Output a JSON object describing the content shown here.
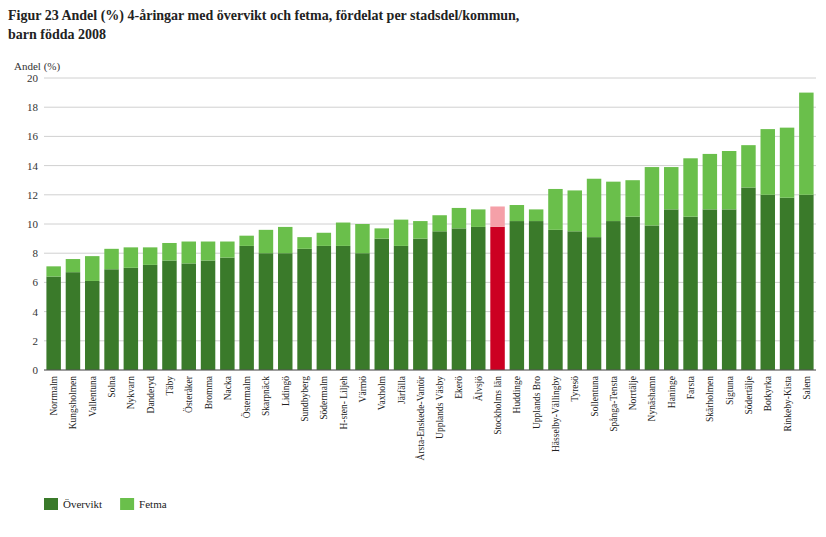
{
  "chart_data": {
    "type": "bar",
    "stacked": true,
    "title": "Figur 23 Andel (%) 4-åringar med övervikt och fetma, fördelat per stadsdel/kommun,\nbarn födda 2008",
    "y_label": "Andel (%)",
    "categories": [
      "Norrmalm",
      "Kungsholmen",
      "Vallentuna",
      "Solna",
      "Nykvarn",
      "Danderyd",
      "Täby",
      "Österåker",
      "Bromma",
      "Nacka",
      "Östermalm",
      "Skarpnäck",
      "Lidingö",
      "Sundbyberg",
      "Södermalm",
      "H-sten- Liljeh",
      "Värmö",
      "Vaxholm",
      "Järfälla",
      "Årsta-Enskede-Vantör",
      "Upplands Väsby",
      "Ekerö",
      "Älvsjö",
      "Stockholms län",
      "Huddinge",
      "Upplands Bro",
      "Hässelby-Vällingby",
      "Tyresö",
      "Sollentuna",
      "Spånga-Tensta",
      "Norrtälje",
      "Nynäshamn",
      "Haninge",
      "Farsta",
      "Skärholmen",
      "Sigtuna",
      "Södertälje",
      "Botkyrka",
      "Rinkeby-Kista",
      "Salem"
    ],
    "series": [
      {
        "name": "Övervikt",
        "color": "#3a7a2a",
        "colors": [
          "#3a7a2a",
          "#3a7a2a",
          "#3a7a2a",
          "#3a7a2a",
          "#3a7a2a",
          "#3a7a2a",
          "#3a7a2a",
          "#3a7a2a",
          "#3a7a2a",
          "#3a7a2a",
          "#3a7a2a",
          "#3a7a2a",
          "#3a7a2a",
          "#3a7a2a",
          "#3a7a2a",
          "#3a7a2a",
          "#3a7a2a",
          "#3a7a2a",
          "#3a7a2a",
          "#3a7a2a",
          "#3a7a2a",
          "#3a7a2a",
          "#3a7a2a",
          "#cc0022",
          "#3a7a2a",
          "#3a7a2a",
          "#3a7a2a",
          "#3a7a2a",
          "#3a7a2a",
          "#3a7a2a",
          "#3a7a2a",
          "#3a7a2a",
          "#3a7a2a",
          "#3a7a2a",
          "#3a7a2a",
          "#3a7a2a",
          "#3a7a2a",
          "#3a7a2a",
          "#3a7a2a",
          "#3a7a2a"
        ],
        "values": [
          6.4,
          6.7,
          6.1,
          6.9,
          7.0,
          7.2,
          7.5,
          7.3,
          7.5,
          7.7,
          8.5,
          8.0,
          8.0,
          8.3,
          8.5,
          8.5,
          8.0,
          9.0,
          8.5,
          9.0,
          9.5,
          9.7,
          9.8,
          9.8,
          10.2,
          10.2,
          9.6,
          9.5,
          9.1,
          10.2,
          10.5,
          9.9,
          11.0,
          10.5,
          11.0,
          11.0,
          12.5,
          12.0,
          11.8,
          12.0
        ]
      },
      {
        "name": "Fetma",
        "color": "#6abf4b",
        "colors": [
          "#6abf4b",
          "#6abf4b",
          "#6abf4b",
          "#6abf4b",
          "#6abf4b",
          "#6abf4b",
          "#6abf4b",
          "#6abf4b",
          "#6abf4b",
          "#6abf4b",
          "#6abf4b",
          "#6abf4b",
          "#6abf4b",
          "#6abf4b",
          "#6abf4b",
          "#6abf4b",
          "#6abf4b",
          "#6abf4b",
          "#6abf4b",
          "#6abf4b",
          "#6abf4b",
          "#6abf4b",
          "#6abf4b",
          "#f5a0a8",
          "#6abf4b",
          "#6abf4b",
          "#6abf4b",
          "#6abf4b",
          "#6abf4b",
          "#6abf4b",
          "#6abf4b",
          "#6abf4b",
          "#6abf4b",
          "#6abf4b",
          "#6abf4b",
          "#6abf4b",
          "#6abf4b",
          "#6abf4b",
          "#6abf4b",
          "#6abf4b"
        ],
        "values": [
          0.7,
          0.9,
          1.7,
          1.4,
          1.4,
          1.2,
          1.2,
          1.5,
          1.3,
          1.1,
          0.7,
          1.6,
          1.8,
          0.8,
          0.9,
          1.6,
          2.0,
          0.7,
          1.8,
          1.2,
          1.1,
          1.4,
          1.2,
          1.4,
          1.1,
          0.8,
          2.8,
          2.8,
          4.0,
          2.7,
          2.5,
          4.0,
          2.9,
          4.0,
          3.8,
          4.0,
          2.9,
          4.5,
          4.8,
          7.0
        ]
      }
    ],
    "ylim": [
      0,
      20
    ],
    "yticks": [
      0,
      2,
      4,
      6,
      8,
      10,
      12,
      14,
      16,
      18,
      20
    ],
    "grid": true,
    "legend": "bottom"
  }
}
